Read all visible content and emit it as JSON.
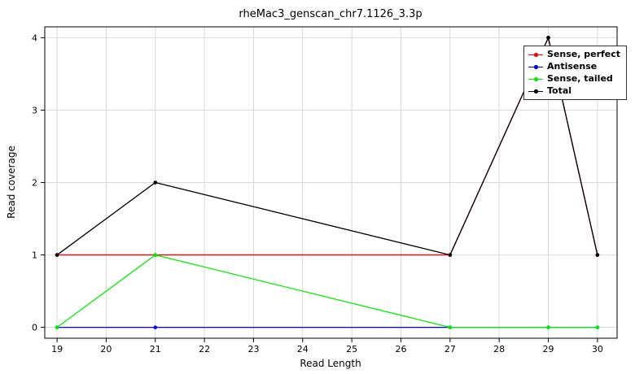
{
  "title": "rheMac3_genscan_chr7.1126_3.3p",
  "chart_data": {
    "type": "line",
    "title": "rheMac3_genscan_chr7.1126_3.3p",
    "xlabel": "Read Length",
    "ylabel": "Read coverage",
    "x": [
      19,
      21,
      27,
      29,
      30
    ],
    "series": [
      {
        "name": "Sense, perfect",
        "color": "#ff0000",
        "values": [
          1,
          1,
          1,
          4,
          1
        ]
      },
      {
        "name": "Antisense",
        "color": "#0000ff",
        "values": [
          0,
          0,
          0,
          0,
          0
        ]
      },
      {
        "name": "Sense, tailed",
        "color": "#00ee00",
        "values": [
          0,
          1,
          0,
          0,
          0
        ]
      },
      {
        "name": "Total",
        "color": "#000000",
        "values": [
          1,
          2,
          1,
          4,
          1
        ]
      }
    ],
    "x_ticks": [
      19,
      20,
      21,
      22,
      23,
      24,
      25,
      26,
      27,
      28,
      29,
      30
    ],
    "y_ticks": [
      0,
      1,
      2,
      3,
      4
    ],
    "xlim": [
      18.75,
      30.4
    ],
    "ylim": [
      -0.15,
      4.15
    ],
    "grid": true,
    "grid_color": "#d9d9d9",
    "legend_position": "top-right"
  }
}
